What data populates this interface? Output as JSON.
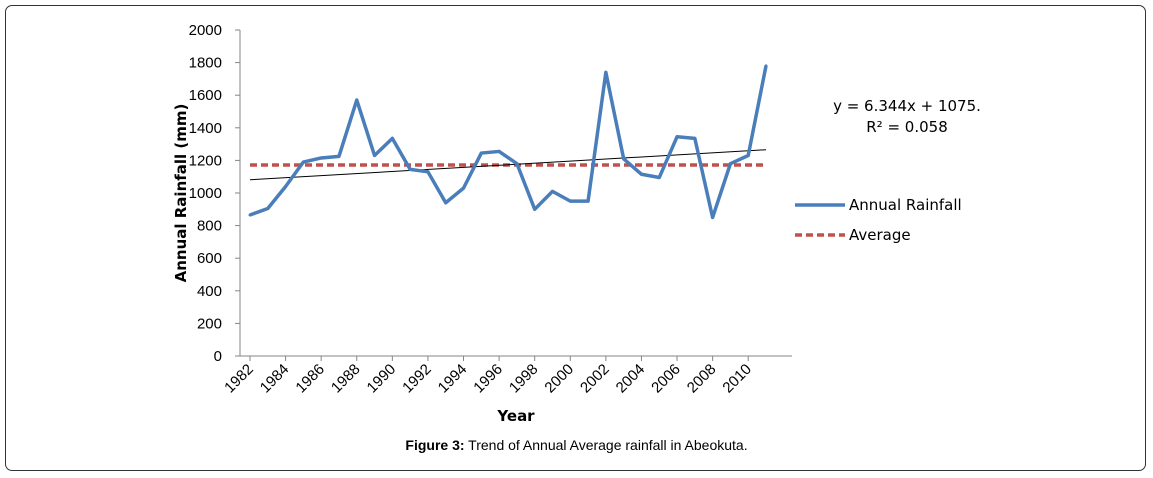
{
  "caption": {
    "label": "Figure 3:",
    "text": "Trend of Annual Average rainfall in Abeokuta."
  },
  "colors": {
    "rainfall": "#4a7ebb",
    "average": "#c0504d",
    "trend": "#000000"
  },
  "chart_data": {
    "type": "line",
    "title": "",
    "xlabel": "Year",
    "ylabel": "Annual Rainfall (mm)",
    "ylim": [
      0,
      2000
    ],
    "yticks": [
      0,
      200,
      400,
      600,
      800,
      1000,
      1200,
      1400,
      1600,
      1800,
      2000
    ],
    "xticks": [
      1982,
      1984,
      1986,
      1988,
      1990,
      1992,
      1994,
      1996,
      1998,
      2000,
      2002,
      2004,
      2006,
      2008,
      2010
    ],
    "x": [
      1982,
      1983,
      1984,
      1985,
      1986,
      1987,
      1988,
      1989,
      1990,
      1991,
      1992,
      1993,
      1994,
      1995,
      1996,
      1997,
      1998,
      1999,
      2000,
      2001,
      2002,
      2003,
      2004,
      2005,
      2006,
      2007,
      2008,
      2009,
      2010,
      2011
    ],
    "series": [
      {
        "name": "Annual Rainfall",
        "values": [
          865,
          905,
          1040,
          1190,
          1215,
          1225,
          1570,
          1230,
          1335,
          1145,
          1130,
          940,
          1030,
          1245,
          1255,
          1180,
          900,
          1010,
          950,
          950,
          1740,
          1210,
          1115,
          1095,
          1345,
          1335,
          850,
          1180,
          1230,
          1780
        ]
      },
      {
        "name": "Average",
        "values": [
          1172,
          1172,
          1172,
          1172,
          1172,
          1172,
          1172,
          1172,
          1172,
          1172,
          1172,
          1172,
          1172,
          1172,
          1172,
          1172,
          1172,
          1172,
          1172,
          1172,
          1172,
          1172,
          1172,
          1172,
          1172,
          1172,
          1172,
          1172,
          1172,
          1172
        ]
      }
    ],
    "trendline": {
      "slope": 6.344,
      "intercept": 1075,
      "equation": "y = 6.344x + 1075.",
      "r2": "R² = 0.058"
    },
    "grid": false,
    "legend_position": "right"
  }
}
